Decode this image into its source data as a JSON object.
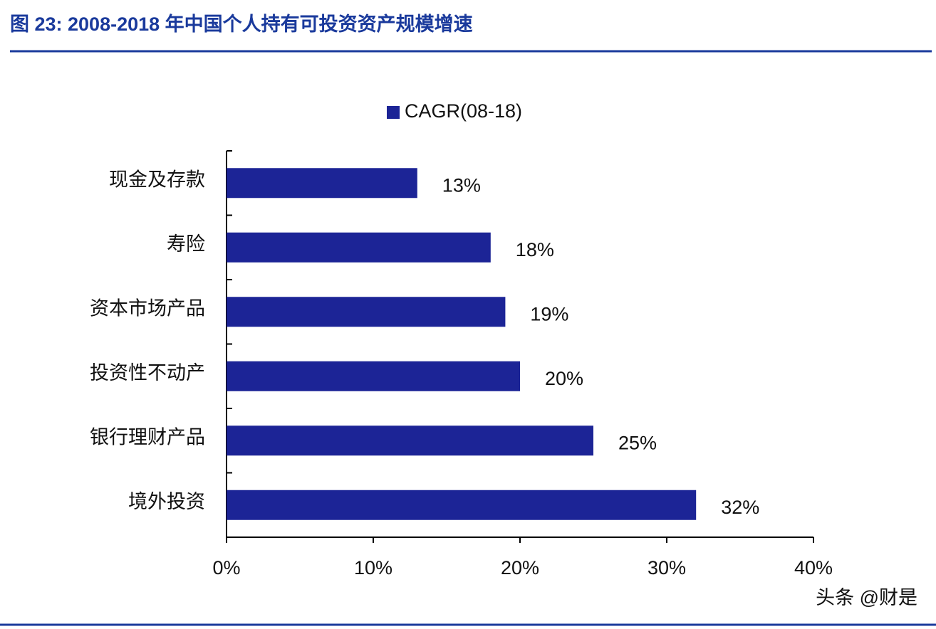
{
  "chart_data": {
    "type": "barh",
    "title": "图 23: 2008-2018 年中国个人持有可投资资产规模增速",
    "categories": [
      "现金及存款",
      "寿险",
      "资本市场产品",
      "投资性不动产",
      "银行理财产品",
      "境外投资"
    ],
    "series": [
      {
        "name": "CAGR(08-18)",
        "color": "#1c2496",
        "values": [
          13,
          18,
          19,
          20,
          25,
          32
        ],
        "value_labels": [
          "13%",
          "18%",
          "19%",
          "20%",
          "25%",
          "32%"
        ]
      }
    ],
    "xlim": [
      0,
      40
    ],
    "xticks": [
      {
        "value": 0,
        "label": "0%"
      },
      {
        "value": 10,
        "label": "10%"
      },
      {
        "value": 20,
        "label": "20%"
      },
      {
        "value": 30,
        "label": "30%"
      },
      {
        "value": 40,
        "label": "40%"
      }
    ],
    "legend": "top",
    "watermark": "头条 @财是"
  }
}
